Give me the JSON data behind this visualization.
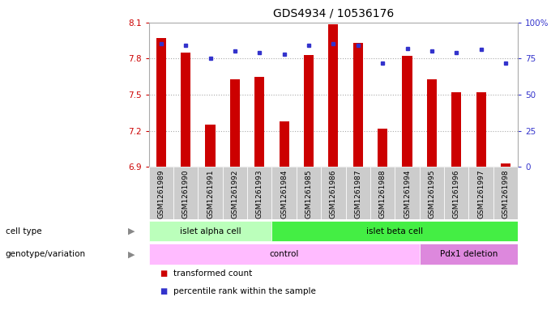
{
  "title": "GDS4934 / 10536176",
  "samples": [
    "GSM1261989",
    "GSM1261990",
    "GSM1261991",
    "GSM1261992",
    "GSM1261993",
    "GSM1261984",
    "GSM1261985",
    "GSM1261986",
    "GSM1261987",
    "GSM1261988",
    "GSM1261994",
    "GSM1261995",
    "GSM1261996",
    "GSM1261997",
    "GSM1261998"
  ],
  "transformed_count": [
    7.97,
    7.85,
    7.25,
    7.63,
    7.65,
    7.28,
    7.83,
    8.08,
    7.93,
    7.22,
    7.82,
    7.63,
    7.52,
    7.52,
    6.93
  ],
  "percentile_rank": [
    85,
    84,
    75,
    80,
    79,
    78,
    84,
    85,
    84,
    72,
    82,
    80,
    79,
    81,
    72
  ],
  "ylim_left": [
    6.9,
    8.1
  ],
  "ylim_right": [
    0,
    100
  ],
  "yticks_left": [
    6.9,
    7.2,
    7.5,
    7.8,
    8.1
  ],
  "yticks_right": [
    0,
    25,
    50,
    75,
    100
  ],
  "ytick_labels_right": [
    "0",
    "25",
    "50",
    "75",
    "100%"
  ],
  "bar_color": "#cc0000",
  "dot_color": "#3333cc",
  "bar_bottom": 6.9,
  "dotted_line_color": "#aaaaaa",
  "dotted_lines": [
    7.8,
    7.5,
    7.2
  ],
  "cell_type_groups": [
    {
      "label": "islet alpha cell",
      "start": 0,
      "end": 4,
      "color": "#bbffbb"
    },
    {
      "label": "islet beta cell",
      "start": 5,
      "end": 14,
      "color": "#44ee44"
    }
  ],
  "genotype_groups": [
    {
      "label": "control",
      "start": 0,
      "end": 10,
      "color": "#ffbbff"
    },
    {
      "label": "Pdx1 deletion",
      "start": 11,
      "end": 14,
      "color": "#dd88dd"
    }
  ],
  "cell_type_label": "cell type",
  "genotype_label": "genotype/variation",
  "legend_items": [
    {
      "label": "transformed count",
      "color": "#cc0000"
    },
    {
      "label": "percentile rank within the sample",
      "color": "#3333cc"
    }
  ],
  "bg_color": "#ffffff",
  "tick_label_color_left": "#cc0000",
  "tick_label_color_right": "#3333cc",
  "bar_width": 0.4,
  "title_fontsize": 10,
  "axis_fontsize": 7.5,
  "sample_label_fontsize": 6.5,
  "xtick_bg_color": "#cccccc"
}
